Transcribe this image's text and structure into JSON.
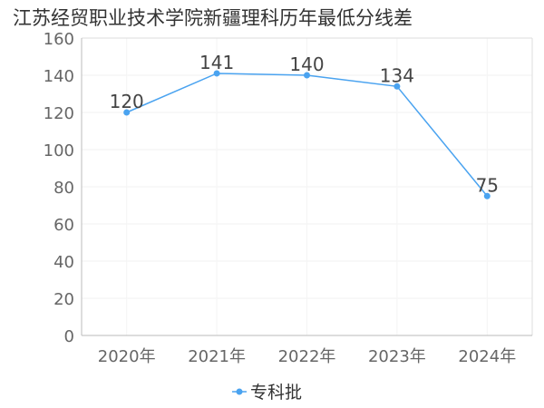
{
  "chart_data": {
    "type": "line",
    "title": "江苏经贸职业技术学院新疆理科历年最低分线差",
    "categories": [
      "2020年",
      "2021年",
      "2022年",
      "2023年",
      "2024年"
    ],
    "series": [
      {
        "name": "专科批",
        "values": [
          120,
          141,
          140,
          134,
          75
        ],
        "color": "#4aa3f0"
      }
    ],
    "ylim": [
      0,
      160
    ],
    "yticks": [
      0,
      20,
      40,
      60,
      80,
      100,
      120,
      140,
      160
    ],
    "grid": true,
    "legend_position": "bottom-center",
    "xlabel": "",
    "ylabel": ""
  }
}
